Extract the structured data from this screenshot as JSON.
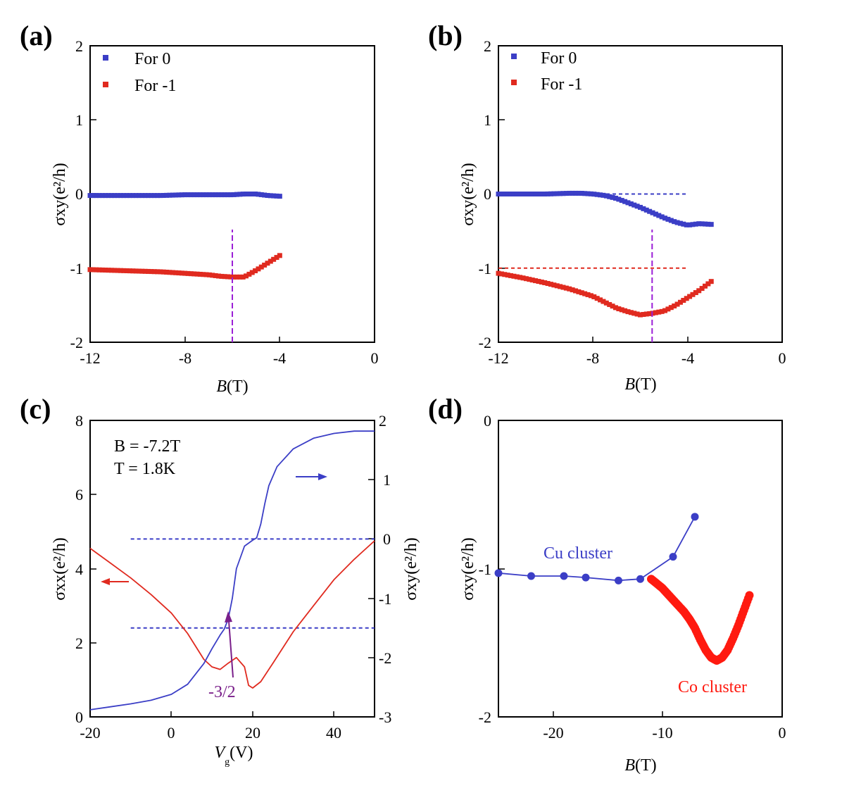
{
  "colors": {
    "blue": "#3b3ec6",
    "red": "#e02a1f",
    "purple": "#9b1fd6",
    "arrow_purple": "#7a1f8a",
    "red_dot": "#ff1a10"
  },
  "chart_data": [
    {
      "id": "a",
      "label": "(a)",
      "type": "scatter",
      "xlabel_main": "B",
      "xlabel_unit": "(T)",
      "ylabel": "σxy(e²/h)",
      "xlim": [
        -12,
        0
      ],
      "ylim": [
        -2,
        2
      ],
      "xticks": [
        "-12",
        "-8",
        "-4",
        "0"
      ],
      "yticks": [
        "2",
        "1",
        "0",
        "-1",
        "-2"
      ],
      "legend": [
        "For 0",
        "For -1"
      ],
      "series": [
        {
          "name": "For 0",
          "color": "blue",
          "x": [
            -12,
            -11,
            -10,
            -9,
            -8,
            -7,
            -6.5,
            -6,
            -5.5,
            -5,
            -4.5,
            -4
          ],
          "y": [
            -0.02,
            -0.02,
            -0.02,
            -0.02,
            -0.01,
            -0.01,
            -0.01,
            -0.01,
            0.0,
            0.0,
            -0.02,
            -0.03
          ]
        },
        {
          "name": "For -1",
          "color": "red",
          "x": [
            -12,
            -11,
            -10,
            -9,
            -8,
            -7,
            -6.5,
            -6,
            -5.5,
            -5,
            -4.5,
            -4
          ],
          "y": [
            -1.02,
            -1.03,
            -1.04,
            -1.05,
            -1.07,
            -1.09,
            -1.11,
            -1.12,
            -1.12,
            -1.03,
            -0.93,
            -0.83
          ]
        }
      ],
      "vline": {
        "x": -6.0,
        "y0": -2,
        "y1": -0.48
      }
    },
    {
      "id": "b",
      "label": "(b)",
      "type": "scatter",
      "xlabel_main": "B",
      "xlabel_unit": "(T)",
      "ylabel": "σxy(e²/h)",
      "xlim": [
        -12,
        0
      ],
      "ylim": [
        -2,
        2
      ],
      "xticks": [
        "-12",
        "-8",
        "-4",
        "0"
      ],
      "yticks": [
        "2",
        "1",
        "0",
        "-1",
        "-2"
      ],
      "legend": [
        "For 0",
        "For -1"
      ],
      "series": [
        {
          "name": "For 0",
          "color": "blue",
          "x": [
            -12,
            -11,
            -10,
            -9,
            -8.5,
            -8,
            -7.5,
            -7,
            -6.5,
            -6,
            -5.5,
            -5,
            -4.5,
            -4,
            -3.5,
            -3
          ],
          "y": [
            0.0,
            0.0,
            0.0,
            0.01,
            0.01,
            0.0,
            -0.02,
            -0.06,
            -0.12,
            -0.18,
            -0.25,
            -0.32,
            -0.38,
            -0.42,
            -0.4,
            -0.41
          ]
        },
        {
          "name": "For -1",
          "color": "red",
          "x": [
            -12,
            -11,
            -10,
            -9,
            -8,
            -7.5,
            -7,
            -6.5,
            -6,
            -5.5,
            -5,
            -4.5,
            -4,
            -3.5,
            -3
          ],
          "y": [
            -1.07,
            -1.13,
            -1.2,
            -1.28,
            -1.38,
            -1.46,
            -1.54,
            -1.59,
            -1.63,
            -1.61,
            -1.58,
            -1.5,
            -1.4,
            -1.3,
            -1.18
          ]
        }
      ],
      "hlines": [
        {
          "y": 0,
          "x0": -12,
          "x1": -4,
          "color": "blue"
        },
        {
          "y": -1,
          "x0": -12,
          "x1": -4,
          "color": "red"
        }
      ],
      "vline": {
        "x": -5.5,
        "y0": -2,
        "y1": -0.48
      }
    },
    {
      "id": "c",
      "label": "(c)",
      "type": "line",
      "xlabel_main": "V",
      "xlabel_sub": "g",
      "xlabel_unit": "(V)",
      "ylabel_left": "σxx(e²/h)",
      "ylabel_right": "σxy(e²/h)",
      "xlim": [
        -20,
        50
      ],
      "ylim_left": [
        0,
        8
      ],
      "ylim_right": [
        -3,
        2
      ],
      "xticks": [
        "-20",
        "0",
        "20",
        "40"
      ],
      "yticks_left": [
        "8",
        "6",
        "4",
        "2",
        "0"
      ],
      "yticks_right": [
        "2",
        "1",
        "0",
        "-1",
        "-2",
        "-3"
      ],
      "annotation_b": "B = -7.2T",
      "annotation_t": "T = 1.8K",
      "annotation_step": "-3/2",
      "series": [
        {
          "name": "σxx",
          "axis": "left",
          "color": "red",
          "x": [
            -20,
            -15,
            -10,
            -5,
            0,
            4,
            8,
            10,
            12,
            14,
            16,
            18,
            19,
            20,
            22,
            25,
            30,
            35,
            40,
            45,
            50
          ],
          "y": [
            4.55,
            4.15,
            3.75,
            3.3,
            2.8,
            2.25,
            1.55,
            1.35,
            1.28,
            1.45,
            1.6,
            1.35,
            0.85,
            0.78,
            0.95,
            1.45,
            2.3,
            3.0,
            3.7,
            4.25,
            4.75
          ]
        },
        {
          "name": "σxy",
          "axis": "right",
          "color": "blue",
          "x": [
            -20,
            -15,
            -10,
            -5,
            0,
            4,
            8,
            10,
            12,
            13,
            14,
            15,
            16,
            18,
            20,
            21,
            22,
            23,
            24,
            26,
            30,
            35,
            40,
            45,
            50
          ],
          "y": [
            -2.88,
            -2.83,
            -2.78,
            -2.72,
            -2.62,
            -2.45,
            -2.1,
            -1.85,
            -1.62,
            -1.52,
            -1.35,
            -1.0,
            -0.5,
            -0.12,
            -0.02,
            0.02,
            0.25,
            0.6,
            0.9,
            1.22,
            1.52,
            1.7,
            1.78,
            1.82,
            1.82
          ]
        }
      ],
      "hlines_right": [
        {
          "y": 0,
          "x0": -10,
          "x1": 50
        },
        {
          "y": -1.5,
          "x0": -10,
          "x1": 50
        }
      ]
    },
    {
      "id": "d",
      "label": "(d)",
      "type": "scatter",
      "xlabel_main": "B",
      "xlabel_unit": "(T)",
      "ylabel": "σxy(e²/h)",
      "xlim": [
        -26,
        0
      ],
      "ylim": [
        -2,
        0
      ],
      "xticks": [
        "-20",
        "-10",
        "0"
      ],
      "yticks": [
        "0",
        "-1",
        "-2"
      ],
      "series": [
        {
          "name": "Cu cluster",
          "color": "blue",
          "connected": true,
          "x": [
            -26,
            -23,
            -20,
            -18,
            -15,
            -13,
            -10,
            -8
          ],
          "y": [
            -1.03,
            -1.05,
            -1.05,
            -1.06,
            -1.08,
            -1.07,
            -0.92,
            -0.65
          ]
        },
        {
          "name": "Co cluster",
          "color": "red_dot",
          "connected": false,
          "x": [
            -12,
            -11.5,
            -11,
            -10.5,
            -10,
            -9.5,
            -9,
            -8.5,
            -8,
            -7.5,
            -7,
            -6.5,
            -6,
            -5.5,
            -5,
            -4.5,
            -4,
            -3.5,
            -3
          ],
          "y": [
            -1.07,
            -1.1,
            -1.13,
            -1.17,
            -1.21,
            -1.25,
            -1.29,
            -1.34,
            -1.4,
            -1.48,
            -1.55,
            -1.6,
            -1.62,
            -1.6,
            -1.55,
            -1.47,
            -1.38,
            -1.28,
            -1.18
          ]
        }
      ],
      "cu_label": "Cu cluster",
      "co_label": "Co cluster"
    }
  ]
}
